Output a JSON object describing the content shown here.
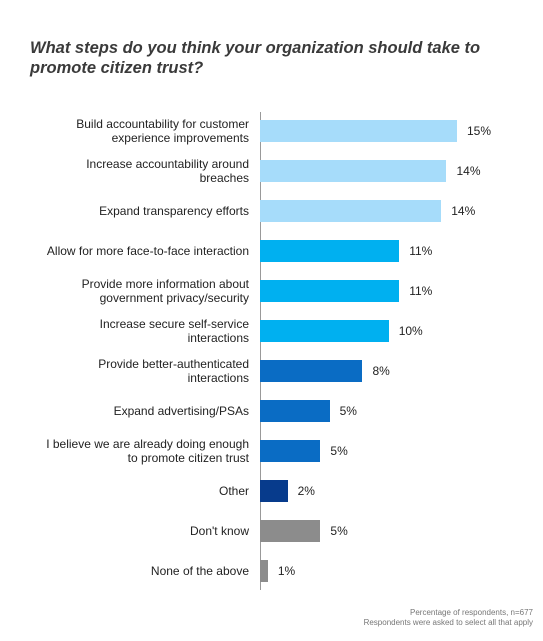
{
  "chart_data": {
    "type": "bar",
    "orientation": "horizontal",
    "title": "What steps do you think your organization should take to promote citizen trust?",
    "categories": [
      "Build accountability for customer\nexperience improvements",
      "Increase accountability around\nbreaches",
      "Expand transparency efforts",
      "Allow for more face-to-face interaction",
      "Provide more information about\ngovernment privacy/security",
      "Increase secure self-service\ninteractions",
      "Provide better-authenticated\ninteractions",
      "Expand advertising/PSAs",
      "I believe we are already doing enough\nto promote citizen trust",
      "Other",
      "Don't know",
      "None of the above"
    ],
    "values": [
      15,
      14.2,
      13.8,
      10.6,
      10.6,
      9.8,
      7.8,
      5.3,
      4.6,
      2.1,
      4.6,
      0.6
    ],
    "value_labels": [
      "15%",
      "14%",
      "14%",
      "11%",
      "11%",
      "10%",
      "8%",
      "5%",
      "5%",
      "2%",
      "5%",
      "1%"
    ],
    "colors": [
      "#a6dcfa",
      "#a6dcfa",
      "#a6dcfa",
      "#00b0f0",
      "#00b0f0",
      "#00b0f0",
      "#0a6cc4",
      "#0a6cc4",
      "#0a6cc4",
      "#073b8c",
      "#8c8c8c",
      "#8c8c8c"
    ],
    "notes": [
      "Percentage of respondents, n=677",
      "Respondents were asked to select all that apply"
    ]
  }
}
